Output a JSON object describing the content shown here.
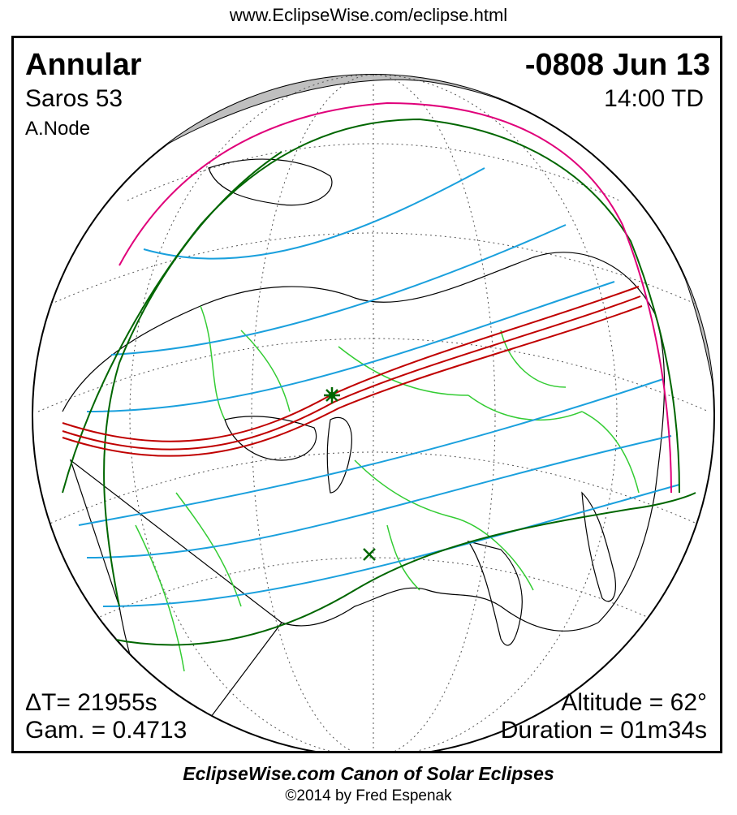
{
  "header": {
    "url": "www.EclipseWise.com/eclipse.html"
  },
  "eclipse": {
    "type": "Annular",
    "saros": "Saros  53",
    "node": "A.Node",
    "date": "-0808 Jun 13",
    "time": "14:00 TD",
    "delta_t": "ΔT=  21955s",
    "gamma": "Gam. = 0.4713",
    "altitude": "Altitude = 62°",
    "duration": "Duration = 01m34s"
  },
  "footer": {
    "title": "EclipseWise.com Canon of Solar Eclipses",
    "copyright": "©2014 by Fred Espenak"
  },
  "colors": {
    "central_path": "#c00000",
    "penumbral_limits": "#006600",
    "penumbral_rise_set": "#e0007a",
    "magnitude_curves": "#1aa0dd",
    "borders": "#33cc33",
    "coastlines": "#000000",
    "night_side": "#bfbfbf"
  },
  "markers": {
    "greatest_eclipse": "asterisk-icon",
    "greatest_duration": "x-mark-icon"
  }
}
